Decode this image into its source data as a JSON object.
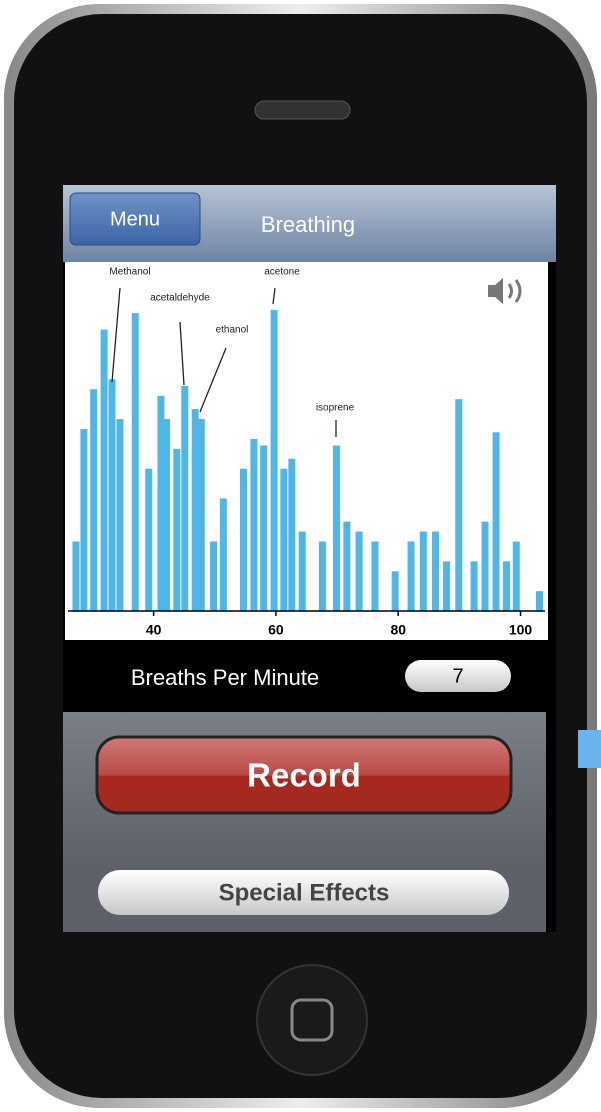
{
  "nav": {
    "menu": "Menu",
    "title": "Breathing"
  },
  "chart_data": {
    "type": "bar",
    "color": "#4fb6ea",
    "x": [
      27.3,
      28.6,
      30.2,
      31.9,
      33.2,
      34.5,
      37.0,
      39.2,
      41.2,
      42.1,
      43.8,
      45.1,
      46.8,
      47.8,
      49.8,
      51.4,
      54.7,
      56.4,
      58.0,
      59.7,
      61.3,
      62.6,
      64.3,
      67.6,
      69.9,
      71.6,
      73.6,
      76.2,
      79.5,
      82.1,
      84.1,
      86.1,
      87.9,
      89.9,
      92.4,
      94.2,
      96.0,
      97.7,
      99.3,
      103.1
    ],
    "values": [
      21,
      55,
      67,
      85,
      70,
      58,
      90,
      43,
      65,
      58,
      49,
      68,
      61,
      58,
      21,
      34,
      43,
      52,
      50,
      91,
      43,
      46,
      24,
      21,
      50,
      27,
      24,
      21,
      12,
      21,
      24,
      24,
      15,
      64,
      15,
      27,
      54,
      15,
      21,
      6
    ],
    "xlim": [
      26,
      104
    ],
    "ylim": [
      0,
      100
    ],
    "xticks": [
      40,
      60,
      80,
      100
    ],
    "annotations": [
      "Methanol",
      "acetaldehyde",
      "ethanol",
      "acetone",
      "isoprene"
    ]
  },
  "controls": {
    "bpm_label": "Breaths Per Minute",
    "bpm_value": "7",
    "record": "Record",
    "effects": "Special Effects"
  }
}
